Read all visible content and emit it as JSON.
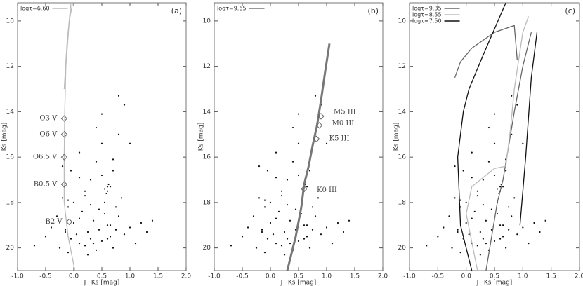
{
  "chart_data": [
    {
      "type": "scatter",
      "panel_label": "(a)",
      "xlabel": "J−Ks [mag]",
      "ylabel": "Ks [mag]",
      "xlim": [
        -1,
        2
      ],
      "ylim": [
        21,
        9.2
      ],
      "xticks": [
        {
          "value": -1,
          "label": "-1.0"
        },
        -0.5,
        {
          "value": 0,
          "label": "0.0"
        },
        0.5,
        {
          "value": 1,
          "label": "1.0"
        },
        1.5,
        {
          "value": 2,
          "label": "2.0"
        }
      ],
      "yticks": [
        10,
        12,
        14,
        16,
        18,
        20
      ],
      "legend": "upper left",
      "series": [
        {
          "name": "logτ=6.60",
          "color": "#bbbbbb",
          "x": [
            0.02,
            -0.1,
            -0.17,
            -0.17,
            -0.16,
            -0.14,
            -0.08,
            -0.02,
            null,
            -0.17,
            -0.12,
            -0.05
          ],
          "y": [
            21,
            19.5,
            18,
            16,
            14,
            12,
            10,
            9.2,
            null,
            13,
            11,
            9.2
          ]
        }
      ],
      "points": {
        "color": "#111111",
        "x": [
          -0.7,
          -0.5,
          -0.4,
          -0.3,
          -0.25,
          -0.2,
          -0.15,
          -0.1,
          -0.1,
          -0.05,
          0.0,
          0.05,
          0.1,
          0.15,
          0.2,
          0.25,
          0.3,
          0.35,
          0.4,
          0.45,
          0.5,
          0.55,
          0.6,
          0.65,
          0.7,
          0.75,
          0.8,
          0.9,
          1.0,
          1.1,
          1.2,
          1.3,
          1.4,
          -0.2,
          -0.1,
          0.0,
          0.1,
          0.2,
          0.3,
          0.4,
          0.5,
          0.6,
          0.7,
          0.8,
          0.55,
          0.6,
          0.65,
          0.58,
          0.62,
          0.5,
          0.7,
          0.45,
          0.3,
          0.2,
          0.1,
          -0.05,
          0.4,
          0.8,
          0.9,
          1.0,
          0.55,
          0.5,
          0.65,
          0.35,
          0.75,
          0.85,
          0.1,
          -0.15,
          0.25,
          0.6
        ],
        "y": [
          19.9,
          19.5,
          19.1,
          18.6,
          20.0,
          17.8,
          19.3,
          18.2,
          20.2,
          19.6,
          18.9,
          19.4,
          19.8,
          18.4,
          19.9,
          19.3,
          19.6,
          18.8,
          20.1,
          19.2,
          19.7,
          18.5,
          19.0,
          19.5,
          20.0,
          19.2,
          18.6,
          19.4,
          19.1,
          19.8,
          18.9,
          19.3,
          18.8,
          16.4,
          17.9,
          18.0,
          16.9,
          17.5,
          18.1,
          16.2,
          15.4,
          17.3,
          16.6,
          15.0,
          17.4,
          17.5,
          17.3,
          17.6,
          17.2,
          16.8,
          16.1,
          18.3,
          17.0,
          17.7,
          15.8,
          16.6,
          14.7,
          13.3,
          13.7,
          15.4,
          18.0,
          14.1,
          19.0,
          19.8,
          18.2,
          17.8,
          18.7,
          19.2,
          20.3,
          19.6
        ]
      },
      "annotations": [
        {
          "text": "O3 V",
          "x": -0.17,
          "y": 14.3
        },
        {
          "text": "O6 V",
          "x": -0.17,
          "y": 15.0
        },
        {
          "text": "O6.5 V",
          "x": -0.17,
          "y": 16.0
        },
        {
          "text": "B0.5 V",
          "x": -0.17,
          "y": 17.2
        },
        {
          "text": "B2 V",
          "x": -0.08,
          "y": 18.85
        }
      ]
    },
    {
      "type": "scatter",
      "panel_label": "(b)",
      "xlabel": "J−Ks [mag]",
      "ylabel": "Ks [mag]",
      "xlim": [
        -1,
        2
      ],
      "ylim": [
        21,
        9.2
      ],
      "xticks": [
        {
          "value": -1,
          "label": "-1.0"
        },
        -0.5,
        {
          "value": 0,
          "label": "0.0"
        },
        0.5,
        {
          "value": 1,
          "label": "1.0"
        },
        1.5,
        {
          "value": 2,
          "label": "2.0"
        }
      ],
      "yticks": [
        10,
        12,
        14,
        16,
        18,
        20
      ],
      "legend": "upper left",
      "series": [
        {
          "name": "logτ=9.65",
          "color": "#777777",
          "x": [
            0.3,
            0.45,
            0.55,
            0.6,
            0.68,
            0.75,
            0.83,
            0.9,
            0.97,
            1.05
          ],
          "y": [
            21,
            19.5,
            18.2,
            17.2,
            16.4,
            15.5,
            14.6,
            13.5,
            12.3,
            11.0
          ]
        }
      ],
      "points": {
        "color": "#111111",
        "x": [
          -0.7,
          -0.5,
          -0.4,
          -0.3,
          -0.25,
          -0.2,
          -0.15,
          -0.1,
          -0.1,
          -0.05,
          0.0,
          0.05,
          0.1,
          0.15,
          0.2,
          0.25,
          0.3,
          0.35,
          0.4,
          0.45,
          0.5,
          0.55,
          0.6,
          0.65,
          0.7,
          0.75,
          0.8,
          0.9,
          1.0,
          1.1,
          1.2,
          1.3,
          1.4,
          -0.2,
          -0.1,
          0.0,
          0.1,
          0.2,
          0.3,
          0.4,
          0.5,
          0.6,
          0.7,
          0.8,
          0.55,
          0.6,
          0.65,
          0.58,
          0.62,
          0.5,
          0.7,
          0.45,
          0.3,
          0.2,
          0.1,
          -0.05,
          0.4,
          0.8,
          0.9,
          1.0,
          0.55,
          0.5,
          0.65,
          0.35,
          0.75,
          0.85,
          0.1,
          -0.15,
          0.25,
          0.6
        ],
        "y": [
          19.9,
          19.5,
          19.1,
          18.6,
          20.0,
          17.8,
          19.3,
          18.2,
          20.2,
          19.6,
          18.9,
          19.4,
          19.8,
          18.4,
          19.9,
          19.3,
          19.6,
          18.8,
          20.1,
          19.2,
          19.7,
          18.5,
          19.0,
          19.5,
          20.0,
          19.2,
          18.6,
          19.4,
          19.1,
          19.8,
          18.9,
          19.3,
          18.8,
          16.4,
          17.9,
          18.0,
          16.9,
          17.5,
          18.1,
          16.2,
          15.4,
          17.3,
          16.6,
          15.0,
          17.4,
          17.5,
          17.3,
          17.6,
          17.2,
          16.8,
          16.1,
          18.3,
          17.0,
          17.7,
          15.8,
          16.6,
          14.7,
          13.3,
          13.7,
          15.4,
          18.0,
          14.1,
          19.0,
          19.8,
          18.2,
          17.8,
          18.7,
          19.2,
          20.3,
          19.6
        ]
      },
      "annotations": [
        {
          "text": "M5 III",
          "x": 0.9,
          "y": 14.2
        },
        {
          "text": "M0 III",
          "x": 0.87,
          "y": 14.6
        },
        {
          "text": "K5 III",
          "x": 0.82,
          "y": 15.2
        },
        {
          "text": "K0 III",
          "x": 0.6,
          "y": 17.4
        }
      ]
    },
    {
      "type": "scatter",
      "panel_label": "(c)",
      "xlabel": "J−Ks [mag]",
      "ylabel": "Ks [mag]",
      "xlim": [
        -1,
        2
      ],
      "ylim": [
        21,
        9.2
      ],
      "xticks": [
        {
          "value": -1,
          "label": "-1.0"
        },
        -0.5,
        {
          "value": 0,
          "label": "0.0"
        },
        0.5,
        {
          "value": 1,
          "label": "1.0"
        },
        1.5,
        {
          "value": 2,
          "label": "2.0"
        }
      ],
      "yticks": [
        10,
        12,
        14,
        16,
        18,
        20
      ],
      "legend": "upper left",
      "series": [
        {
          "name": "logτ=9.35",
          "color": "#666666",
          "x": [
            0.35,
            0.55,
            0.65,
            0.75,
            0.85,
            1.0,
            1.15,
            null,
            -0.2,
            -0.1,
            0.1,
            0.5,
            0.85,
            0.9
          ],
          "y": [
            21,
            18,
            17,
            15.5,
            14,
            12,
            10.5,
            null,
            12.5,
            11.8,
            11.2,
            10.5,
            10.2,
            11.7
          ]
        },
        {
          "name": "logτ=8.55",
          "color": "#bbbbbb",
          "x": [
            0.2,
            0.0,
            0.1,
            0.5,
            0.7,
            0.78,
            0.85,
            1.0,
            1.1
          ],
          "y": [
            21,
            18.5,
            17.3,
            16.5,
            16.4,
            14.8,
            13,
            10.5,
            9.8
          ]
        },
        {
          "name": "logτ=7.50",
          "color": "#111111",
          "x": [
            0.1,
            -0.1,
            -0.15,
            -0.05,
            0.05,
            0.3,
            0.7,
            null,
            0.95,
            1.05,
            1.15,
            1.25
          ],
          "y": [
            21,
            19,
            16,
            14,
            13,
            11.5,
            9.2,
            null,
            19,
            16,
            12.5,
            10.5
          ]
        }
      ],
      "points": {
        "color": "#111111",
        "x": [
          -0.7,
          -0.5,
          -0.4,
          -0.3,
          -0.25,
          -0.2,
          -0.15,
          -0.1,
          -0.1,
          -0.05,
          0.0,
          0.05,
          0.1,
          0.15,
          0.2,
          0.25,
          0.3,
          0.35,
          0.4,
          0.45,
          0.5,
          0.55,
          0.6,
          0.65,
          0.7,
          0.75,
          0.8,
          0.9,
          1.0,
          1.1,
          1.2,
          1.3,
          1.4,
          -0.2,
          -0.1,
          0.0,
          0.1,
          0.2,
          0.3,
          0.4,
          0.5,
          0.6,
          0.7,
          0.8,
          0.55,
          0.6,
          0.65,
          0.58,
          0.62,
          0.5,
          0.7,
          0.45,
          0.3,
          0.2,
          0.1,
          -0.05,
          0.4,
          0.8,
          0.9,
          1.0,
          0.55,
          0.5,
          0.65,
          0.35,
          0.75,
          0.85,
          0.1,
          -0.15,
          0.25,
          0.6
        ],
        "y": [
          19.9,
          19.5,
          19.1,
          18.6,
          20.0,
          17.8,
          19.3,
          18.2,
          20.2,
          19.6,
          18.9,
          19.4,
          19.8,
          18.4,
          19.9,
          19.3,
          19.6,
          18.8,
          20.1,
          19.2,
          19.7,
          18.5,
          19.0,
          19.5,
          20.0,
          19.2,
          18.6,
          19.4,
          19.1,
          19.8,
          18.9,
          19.3,
          18.8,
          16.4,
          17.9,
          18.0,
          16.9,
          17.5,
          18.1,
          16.2,
          15.4,
          17.3,
          16.6,
          15.0,
          17.4,
          17.5,
          17.3,
          17.6,
          17.2,
          16.8,
          16.1,
          18.3,
          17.0,
          17.7,
          15.8,
          16.6,
          14.7,
          13.3,
          13.7,
          15.4,
          18.0,
          14.1,
          19.0,
          19.8,
          18.2,
          17.8,
          18.7,
          19.2,
          20.3,
          19.6
        ]
      },
      "annotations": []
    }
  ]
}
